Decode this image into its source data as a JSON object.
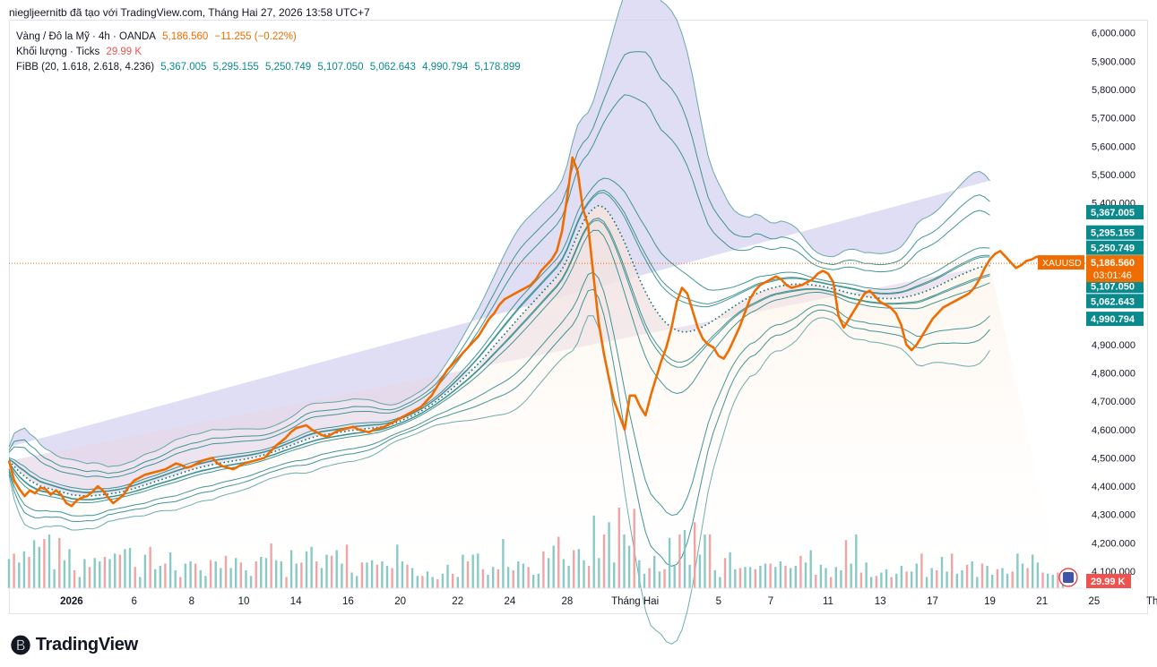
{
  "header": {
    "text": "niegljeernitb đã tạo với TradingView.com, Tháng Hai 27, 2026 13:58 UTC+7"
  },
  "legend": {
    "symbol_line": "Vàng / Đô la Mỹ · 4h · OANDA",
    "price": "5,186.560",
    "change": "−11.255 (−0.22%)",
    "volume_label": "Khối lượng · Ticks",
    "volume_value": "29.99 K",
    "fibb_label": "FiBB (20, 1.618, 2.618, 4.236)",
    "fibb_values": [
      "5,367.005",
      "5,295.155",
      "5,250.749",
      "5,107.050",
      "5,062.643",
      "4,990.794",
      "5,178.899"
    ]
  },
  "footer": {
    "brand": "TradingView"
  },
  "colors": {
    "price_line": "#ef6c00",
    "band_line": "#2e8b8b",
    "upper_fill": "#d6d3f0",
    "lower_fill": "#fde9d6",
    "vol_up": "#7cc4c0",
    "vol_down": "#f19a9a"
  },
  "chart_data": {
    "type": "line",
    "symbol": "XAUUSD",
    "timeframe": "4h",
    "ylim": [
      4040,
      6040
    ],
    "y_ticks": [
      "4,100.000",
      "4,200.000",
      "4,300.000",
      "4,400.000",
      "4,500.000",
      "4,600.000",
      "4,700.000",
      "4,800.000",
      "4,900.000",
      "5,000.000",
      "5,100.000",
      "5,200.000",
      "5,300.000",
      "5,400.000",
      "5,500.000",
      "5,600.000",
      "5,700.000",
      "5,800.000",
      "5,900.000",
      "6,000.000"
    ],
    "x_ticks": [
      "2026",
      "6",
      "8",
      "10",
      "14",
      "16",
      "20",
      "22",
      "24",
      "28",
      "Tháng Hai",
      "5",
      "7",
      "11",
      "13",
      "17",
      "19",
      "21",
      "25",
      "Thár"
    ],
    "x_tick_index": [
      12,
      24,
      35,
      45,
      55,
      65,
      75,
      86,
      96,
      107,
      120,
      136,
      146,
      157,
      167,
      177,
      188,
      198,
      208,
      220
    ],
    "price": [
      4490,
      4420,
      4390,
      4365,
      4385,
      4375,
      4395,
      4390,
      4370,
      4385,
      4370,
      4340,
      4330,
      4350,
      4360,
      4365,
      4380,
      4400,
      4385,
      4360,
      4340,
      4355,
      4370,
      4400,
      4420,
      4430,
      4440,
      4445,
      4450,
      4455,
      4460,
      4470,
      4480,
      4475,
      4465,
      4470,
      4480,
      4490,
      4495,
      4500,
      4480,
      4470,
      4465,
      4460,
      4470,
      4480,
      4485,
      4490,
      4495,
      4500,
      4520,
      4540,
      4555,
      4570,
      4590,
      4605,
      4610,
      4615,
      4600,
      4590,
      4580,
      4575,
      4585,
      4595,
      4600,
      4605,
      4610,
      4600,
      4595,
      4590,
      4600,
      4605,
      4610,
      4620,
      4630,
      4640,
      4650,
      4660,
      4670,
      4680,
      4700,
      4720,
      4750,
      4780,
      4810,
      4830,
      4850,
      4870,
      4890,
      4910,
      4930,
      4960,
      4990,
      5010,
      5040,
      5060,
      5070,
      5080,
      5090,
      5100,
      5110,
      5130,
      5160,
      5180,
      5200,
      5230,
      5300,
      5420,
      5560,
      5510,
      5380,
      5320,
      5150,
      4980,
      4870,
      4780,
      4700,
      4650,
      4600,
      4720,
      4720,
      4680,
      4650,
      4720,
      4780,
      4840,
      4890,
      4960,
      5050,
      5100,
      5080,
      5020,
      4960,
      4920,
      4900,
      4890,
      4860,
      4850,
      4880,
      4920,
      4960,
      5010,
      5060,
      5090,
      5110,
      5120,
      5130,
      5140,
      5130,
      5110,
      5100,
      5105,
      5110,
      5120,
      5130,
      5150,
      5160,
      5150,
      5120,
      5000,
      4960,
      4990,
      5020,
      5050,
      5080,
      5090,
      5070,
      5050,
      5040,
      5030,
      5010,
      4970,
      4900,
      4880,
      4900,
      4930,
      4960,
      4990,
      5010,
      5030,
      5040,
      5050,
      5060,
      5070,
      5080,
      5100,
      5130,
      5170,
      5200,
      5220,
      5230,
      5210,
      5190,
      5170,
      5180,
      5195,
      5200,
      5210,
      5205,
      5195,
      5190,
      5185,
      5186.56
    ],
    "basis": [
      4490,
      4470,
      4450,
      4435,
      4420,
      4410,
      4400,
      4395,
      4390,
      4385,
      4380,
      4375,
      4370,
      4368,
      4366,
      4365,
      4366,
      4368,
      4370,
      4372,
      4375,
      4378,
      4382,
      4387,
      4392,
      4398,
      4404,
      4410,
      4416,
      4422,
      4428,
      4434,
      4440,
      4446,
      4452,
      4458,
      4463,
      4468,
      4472,
      4476,
      4480,
      4483,
      4486,
      4489,
      4492,
      4495,
      4498,
      4502,
      4506,
      4511,
      4517,
      4523,
      4530,
      4537,
      4544,
      4551,
      4558,
      4565,
      4571,
      4576,
      4580,
      4583,
      4586,
      4589,
      4592,
      4595,
      4598,
      4600,
      4602,
      4604,
      4606,
      4608,
      4612,
      4617,
      4623,
      4630,
      4638,
      4646,
      4655,
      4665,
      4676,
      4688,
      4701,
      4715,
      4730,
      4746,
      4762,
      4779,
      4796,
      4814,
      4833,
      4853,
      4874,
      4895,
      4916,
      4937,
      4958,
      4979,
      5000,
      5020,
      5040,
      5060,
      5080,
      5100,
      5120,
      5140,
      5165,
      5200,
      5245,
      5290,
      5330,
      5360,
      5380,
      5390,
      5385,
      5365,
      5335,
      5300,
      5260,
      5215,
      5170,
      5125,
      5085,
      5050,
      5020,
      4995,
      4975,
      4960,
      4950,
      4945,
      4945,
      4948,
      4955,
      4963,
      4973,
      4985,
      4997,
      5010,
      5023,
      5035,
      5047,
      5058,
      5068,
      5077,
      5085,
      5092,
      5098,
      5103,
      5107,
      5110,
      5112,
      5113,
      5113,
      5112,
      5110,
      5108,
      5105,
      5101,
      5097,
      5092,
      5087,
      5082,
      5078,
      5074,
      5070,
      5067,
      5065,
      5063,
      5062,
      5062,
      5063,
      5065,
      5068,
      5072,
      5077,
      5083,
      5090,
      5098,
      5106,
      5115,
      5124,
      5133,
      5142,
      5150,
      5158,
      5166,
      5172,
      5176,
      5178.899
    ],
    "band_offsets": [
      -590,
      -445,
      -350,
      -120,
      -70,
      -60,
      60,
      70,
      120,
      350,
      445,
      590
    ],
    "volume": [
      26,
      31,
      23,
      33,
      28,
      43,
      37,
      44,
      48,
      17,
      45,
      25,
      35,
      16,
      10,
      26,
      19,
      27,
      24,
      28,
      26,
      31,
      30,
      35,
      36,
      19,
      10,
      30,
      37,
      17,
      20,
      22,
      32,
      16,
      10,
      22,
      24,
      22,
      16,
      11,
      25,
      24,
      18,
      29,
      18,
      27,
      23,
      16,
      11,
      24,
      28,
      27,
      40,
      25,
      24,
      10,
      34,
      22,
      23,
      33,
      37,
      24,
      18,
      30,
      29,
      34,
      22,
      39,
      14,
      11,
      23,
      23,
      25,
      21,
      24,
      20,
      18,
      39,
      24,
      21,
      18,
      11,
      11,
      15,
      10,
      8,
      13,
      21,
      13,
      10,
      30,
      24,
      30,
      31,
      17,
      12,
      19,
      17,
      44,
      19,
      16,
      24,
      22,
      19,
      12,
      13,
      33,
      27,
      38,
      46,
      26,
      20,
      34,
      35,
      25,
      20,
      65,
      27,
      48,
      59,
      23,
      72,
      48,
      38,
      71,
      25,
      13,
      18,
      29,
      15,
      17,
      45,
      20,
      48,
      52,
      21,
      59,
      30,
      48,
      48,
      16,
      10,
      27,
      32,
      17,
      18,
      19,
      19,
      17,
      20,
      22,
      22,
      19,
      24,
      20,
      18,
      20,
      29,
      23,
      34,
      12,
      21,
      18,
      10,
      19,
      16,
      43,
      22,
      48,
      14,
      23,
      10,
      11,
      14,
      17,
      10,
      13,
      20,
      15,
      15,
      22,
      31,
      10,
      18,
      16,
      28,
      15,
      31,
      13,
      16,
      21,
      24,
      10,
      22,
      20,
      12,
      17,
      18,
      13,
      15,
      31,
      22,
      18,
      30,
      23,
      14,
      13,
      12,
      14,
      11
    ],
    "last_price_label": "5,186.560",
    "countdown": "03:01:46",
    "right_labels": [
      "5,367.005",
      "5,295.155",
      "5,250.749",
      "5,178.899",
      "5,107.050",
      "5,062.643",
      "4,990.794"
    ],
    "volume_badge": "29.99 K"
  }
}
